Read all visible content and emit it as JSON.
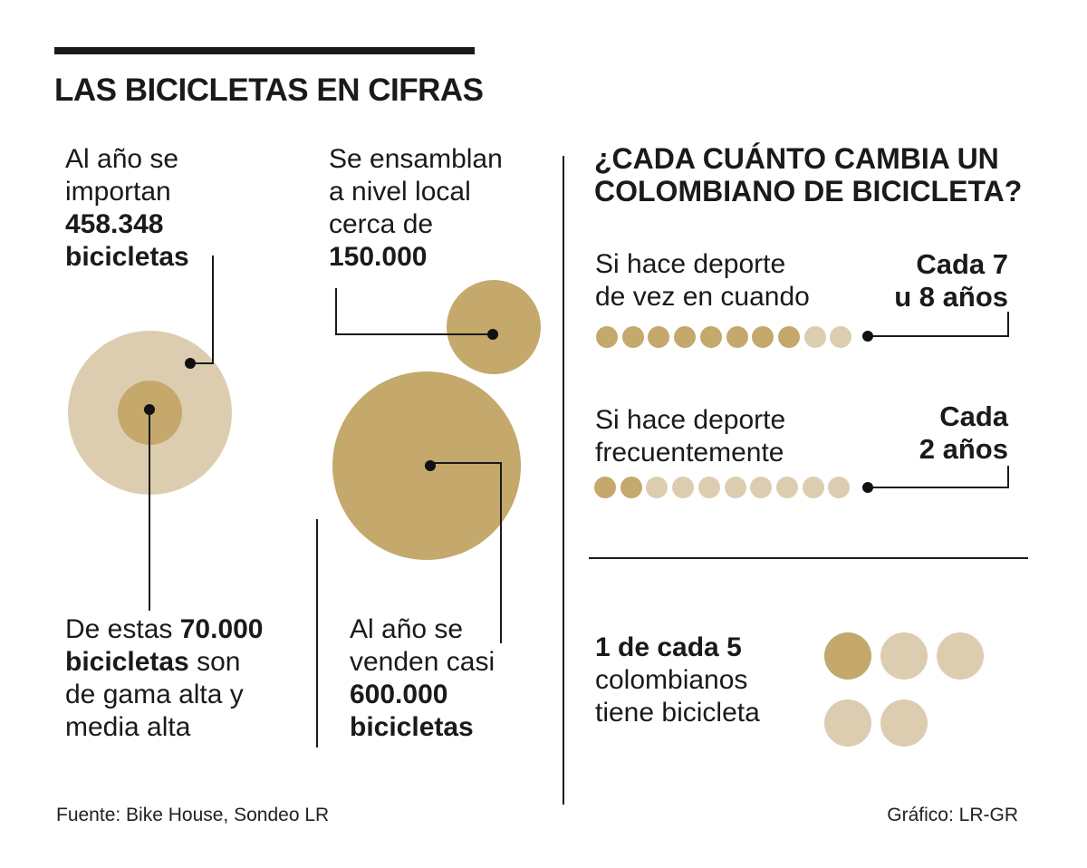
{
  "title": "LAS BICICLETAS EN CIFRAS",
  "colors": {
    "dark_gold": "#c4a86c",
    "light_gold": "#ddcdb0",
    "ink": "#1a1a1a"
  },
  "left": {
    "imports": {
      "line1": "Al año se",
      "line2": "importan",
      "value": "458.348",
      "unit": "bicicletas"
    },
    "high_end": {
      "pre": "De estas",
      "value": "70.000",
      "unit": "bicicletas",
      "post": "son",
      "line3": "de gama alta y",
      "line4": "media alta"
    },
    "assembled": {
      "line1": "Se ensamblan",
      "line2": "a nivel local",
      "line3": "cerca de",
      "value": "150.000"
    },
    "sold": {
      "line1": "Al año se",
      "line2": "venden casi",
      "value": "600.000",
      "unit": "bicicletas"
    }
  },
  "right": {
    "question": {
      "line1": "¿CADA CUÁNTO CAMBIA UN",
      "line2": "COLOMBIANO DE BICICLETA?"
    },
    "occasional": {
      "line1": "Si hace deporte",
      "line2": "de vez en cuando",
      "answer1": "Cada 7",
      "answer2": "u 8 años",
      "filled_dots": 8,
      "total_dots": 10
    },
    "frequent": {
      "line1": "Si hace deporte",
      "line2": "frecuentemente",
      "answer1": "Cada",
      "answer2": "2 años",
      "filled_dots": 2,
      "total_dots": 10
    },
    "ownership": {
      "bold": "1 de cada 5",
      "line2": "colombianos",
      "line3": "tiene bicicleta",
      "filled": 1,
      "total": 5
    }
  },
  "footer": {
    "source": "Fuente: Bike House, Sondeo LR",
    "credit": "Gráfico: LR-GR"
  },
  "chart_data": {
    "type": "bubble",
    "title": "LAS BICICLETAS EN CIFRAS",
    "series": [
      {
        "name": "importan",
        "value": 458348
      },
      {
        "name": "gama alta y media alta",
        "value": 70000
      },
      {
        "name": "ensamblan",
        "value": 150000
      },
      {
        "name": "venden",
        "value": 600000
      }
    ]
  }
}
